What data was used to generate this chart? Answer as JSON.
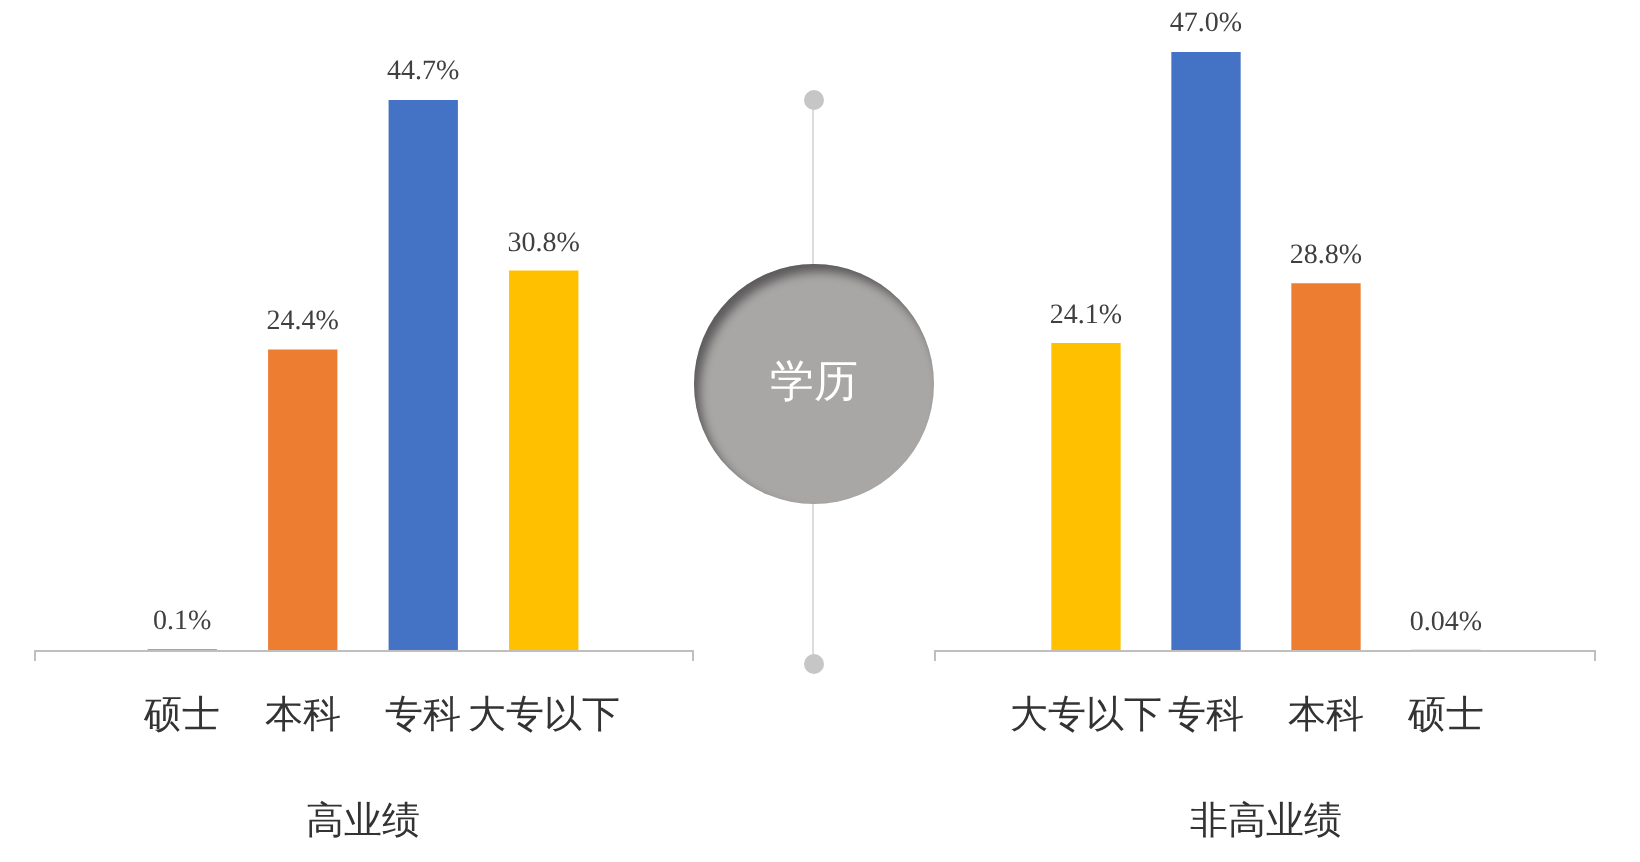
{
  "chart_data": [
    {
      "type": "bar",
      "categories": [
        "硕士",
        "本科",
        "专科",
        "大专以下"
      ],
      "values": [
        0.1,
        24.4,
        44.7,
        30.8
      ],
      "colors": [
        "#a5a5a5",
        "#ed7d31",
        "#4472c4",
        "#ffc000"
      ],
      "value_labels": [
        "0.1%",
        "24.4%",
        "44.7%",
        "30.8%"
      ],
      "xlabel": "高业绩",
      "tick_labels": "x"
    },
    {
      "type": "other",
      "title": "学历"
    },
    {
      "type": "bar",
      "categories": [
        "大专以下",
        "专科",
        "本科",
        "硕士"
      ],
      "values": [
        24.1,
        47.0,
        28.8,
        0.04
      ],
      "colors": [
        "#ffc000",
        "#4472c4",
        "#ed7d31",
        "#a5a5a5"
      ],
      "value_labels": [
        "24.1%",
        "47.0%",
        "28.8%",
        "0.04%"
      ],
      "xlabel": "非高业绩",
      "tick_labels": "x"
    }
  ]
}
